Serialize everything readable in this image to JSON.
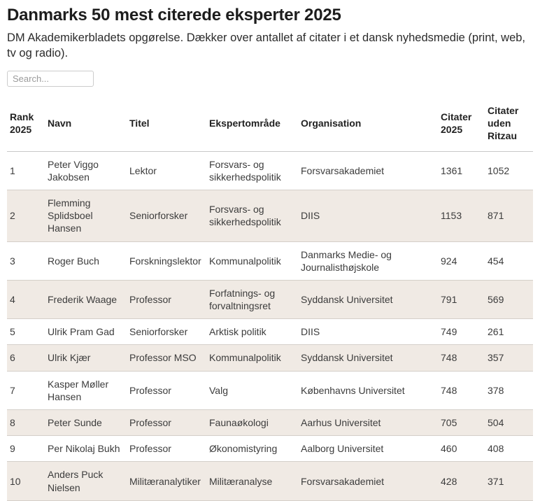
{
  "page": {
    "title": "Danmarks 50 mest citerede eksperter 2025",
    "subtitle": "DM Akademikerbladets opgørelse. Dækker over antallet af citater i et dansk nyhedsmedie (print, web, tv og radio)."
  },
  "search": {
    "placeholder": "Search...",
    "value": ""
  },
  "table": {
    "columns": [
      "Rank 2025",
      "Navn",
      "Titel",
      "Ekspertområde",
      "Organisation",
      "Citater 2025",
      "Citater uden Ritzau"
    ],
    "column_keys": [
      "rank-2025",
      "navn",
      "titel",
      "ekspertomraade",
      "organisation",
      "citater-2025",
      "citater-uden-ritzau"
    ],
    "rows": [
      [
        "1",
        "Peter Viggo Jakobsen",
        "Lektor",
        "Forsvars- og sikkerhedspolitik",
        "Forsvarsakademiet",
        "1361",
        "1052"
      ],
      [
        "2",
        "Flemming Splidsboel Hansen",
        "Seniorforsker",
        "Forsvars- og sikkerhedspolitik",
        "DIIS",
        "1153",
        "871"
      ],
      [
        "3",
        "Roger Buch",
        "Forskningslektor",
        "Kommunalpolitik",
        "Danmarks Medie- og Journalisthøjskole",
        "924",
        "454"
      ],
      [
        "4",
        "Frederik Waage",
        "Professor",
        "Forfatnings- og forvaltningsret",
        "Syddansk Universitet",
        "791",
        "569"
      ],
      [
        "5",
        "Ulrik Pram Gad",
        "Seniorforsker",
        "Arktisk politik",
        "DIIS",
        "749",
        "261"
      ],
      [
        "6",
        "Ulrik Kjær",
        "Professor MSO",
        "Kommunalpolitik",
        "Syddansk Universitet",
        "748",
        "357"
      ],
      [
        "7",
        "Kasper Møller Hansen",
        "Professor",
        "Valg",
        "Københavns Universitet",
        "748",
        "378"
      ],
      [
        "8",
        "Peter Sunde",
        "Professor",
        "Faunaøkologi",
        "Aarhus Universitet",
        "705",
        "504"
      ],
      [
        "9",
        "Per Nikolaj Bukh",
        "Professor",
        "Økonomistyring",
        "Aalborg Universitet",
        "460",
        "408"
      ],
      [
        "10",
        "Anders Puck Nielsen",
        "Militæranalytiker",
        "Militæranalyse",
        "Forsvarsakademiet",
        "428",
        "371"
      ]
    ]
  },
  "colors": {
    "alt_row_background": "#f0eae4",
    "row_border": "#d4cfc9",
    "header_border": "#c9c9c9",
    "title_text": "#1d1d1d",
    "body_text": "#3c3c3c"
  }
}
